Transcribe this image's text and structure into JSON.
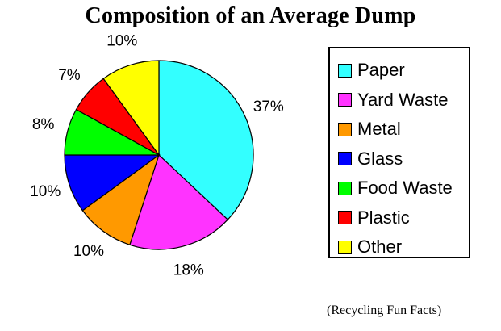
{
  "chart_data": {
    "type": "pie",
    "title": "Composition of an Average Dump",
    "slices": [
      {
        "name": "Paper",
        "value": 37,
        "label": "37%",
        "color": "#33ffff"
      },
      {
        "name": "Yard Waste",
        "value": 18,
        "label": "18%",
        "color": "#ff33ff"
      },
      {
        "name": "Metal",
        "value": 10,
        "label": "10%",
        "color": "#ff9900"
      },
      {
        "name": "Glass",
        "value": 10,
        "label": "10%",
        "color": "#0000ff"
      },
      {
        "name": "Food Waste",
        "value": 8,
        "label": "8%",
        "color": "#00ff00"
      },
      {
        "name": "Plastic",
        "value": 7,
        "label": "7%",
        "color": "#ff0000"
      },
      {
        "name": "Other",
        "value": 10,
        "label": "10%",
        "color": "#ffff00"
      }
    ],
    "legend_position": "right"
  },
  "source_note": "(Recycling Fun Facts)"
}
